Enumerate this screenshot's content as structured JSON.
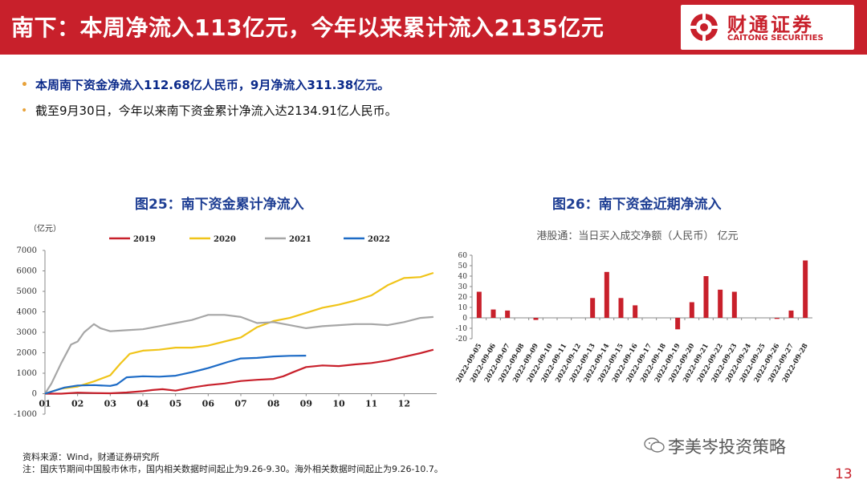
{
  "header": {
    "title": "南下：本周净流入113亿元，今年以来累计流入2135亿元"
  },
  "logo": {
    "cn": "财通证券",
    "en": "CAITONG SECURITIES"
  },
  "bullets": [
    "本周南下资金净流入112.68亿人民币，9月净流入311.38亿元。",
    "截至9月30日，今年以来南下资金累计净流入达2134.91亿人民币。"
  ],
  "chart25": {
    "title": "图25：南下资金累计净流入"
  },
  "chart26": {
    "title": "图26：南下资金近期净流入"
  },
  "footer": {
    "source": "资料来源：Wind，财通证券研究所",
    "note": "注：国庆节期间中国股市休市，国内相关数据时间起止为9.26-9.30。海外相关数据时间起止为9.26-10.7。"
  },
  "watermark": "李美岑投资策略",
  "page_number": "13",
  "colors": {
    "red": "#c8202b",
    "gold": "#f0c419",
    "gray": "#a6a6a6",
    "blue": "#1d6bc6",
    "bar": "#c8202b"
  },
  "chart_data": [
    {
      "type": "line",
      "title": "图25：南下资金累计净流入",
      "unit": "（亿元）",
      "ylim": [
        -1000,
        7000
      ],
      "yticks": [
        -1000,
        0,
        1000,
        2000,
        3000,
        4000,
        5000,
        6000,
        7000
      ],
      "xticks": [
        "01",
        "02",
        "03",
        "04",
        "05",
        "06",
        "07",
        "08",
        "09",
        "10",
        "11",
        "12"
      ],
      "x_range": [
        1,
        13
      ],
      "series": [
        {
          "name": "2019",
          "color": "#c8202b",
          "x": [
            1,
            1.5,
            2,
            2.5,
            3,
            3.5,
            4,
            4.3,
            4.6,
            5,
            5.5,
            6,
            6.5,
            7,
            7.5,
            8,
            8.3,
            8.6,
            9,
            9.5,
            10,
            10.5,
            11,
            11.5,
            12,
            12.5,
            12.9
          ],
          "values": [
            0,
            0,
            50,
            30,
            20,
            60,
            120,
            180,
            220,
            150,
            300,
            420,
            500,
            620,
            680,
            720,
            850,
            1050,
            1300,
            1380,
            1350,
            1430,
            1500,
            1620,
            1800,
            1980,
            2150
          ]
        },
        {
          "name": "2020",
          "color": "#f0c419",
          "x": [
            1,
            1.5,
            2,
            2.5,
            3,
            3.3,
            3.6,
            4,
            4.5,
            5,
            5.5,
            6,
            6.5,
            7,
            7.5,
            8,
            8.5,
            9,
            9.5,
            10,
            10.5,
            11,
            11.5,
            12,
            12.5,
            12.9
          ],
          "values": [
            0,
            250,
            350,
            600,
            900,
            1450,
            1950,
            2100,
            2150,
            2250,
            2250,
            2350,
            2550,
            2750,
            3250,
            3550,
            3700,
            3950,
            4200,
            4350,
            4550,
            4800,
            5300,
            5650,
            5700,
            5900
          ]
        },
        {
          "name": "2021",
          "color": "#a6a6a6",
          "x": [
            1,
            1.2,
            1.5,
            1.8,
            2,
            2.2,
            2.5,
            2.7,
            3,
            3.5,
            4,
            4.5,
            5,
            5.5,
            6,
            6.5,
            7,
            7.5,
            8,
            8.5,
            9,
            9.5,
            10,
            10.5,
            11,
            11.5,
            12,
            12.5,
            12.9
          ],
          "values": [
            0,
            500,
            1500,
            2400,
            2550,
            3000,
            3400,
            3200,
            3050,
            3100,
            3150,
            3300,
            3450,
            3600,
            3850,
            3850,
            3750,
            3450,
            3500,
            3350,
            3200,
            3300,
            3350,
            3400,
            3400,
            3350,
            3500,
            3700,
            3750
          ]
        },
        {
          "name": "2022",
          "color": "#1d6bc6",
          "x": [
            1,
            1.3,
            1.6,
            2,
            2.5,
            3,
            3.2,
            3.5,
            4,
            4.5,
            5,
            5.5,
            6,
            6.3,
            6.6,
            7,
            7.5,
            8,
            8.5,
            9
          ],
          "values": [
            0,
            150,
            300,
            400,
            420,
            380,
            450,
            800,
            850,
            830,
            880,
            1050,
            1250,
            1400,
            1550,
            1720,
            1750,
            1820,
            1850,
            1860
          ]
        }
      ]
    },
    {
      "type": "bar",
      "title": "港股通：当日买入成交净额（人民币） 亿元",
      "ylim": [
        -20,
        60
      ],
      "yticks": [
        -20,
        -10,
        0,
        10,
        20,
        30,
        40,
        50,
        60
      ],
      "categories": [
        "2022-09-05",
        "2022-09-06",
        "2022-09-07",
        "2022-09-08",
        "2022-09-09",
        "2022-09-10",
        "2022-09-11",
        "2022-09-12",
        "2022-09-13",
        "2022-09-14",
        "2022-09-15",
        "2022-09-16",
        "2022-09-17",
        "2022-09-18",
        "2022-09-19",
        "2022-09-20",
        "2022-09-21",
        "2022-09-22",
        "2022-09-23",
        "2022-09-24",
        "2022-09-25",
        "2022-09-26",
        "2022-09-27",
        "2022-09-28"
      ],
      "values": [
        25,
        8,
        7,
        0,
        -2,
        0,
        0,
        0,
        19,
        44,
        19,
        12,
        0,
        0,
        -11,
        15,
        40,
        27,
        25,
        0,
        0,
        -1,
        7,
        55
      ]
    }
  ]
}
